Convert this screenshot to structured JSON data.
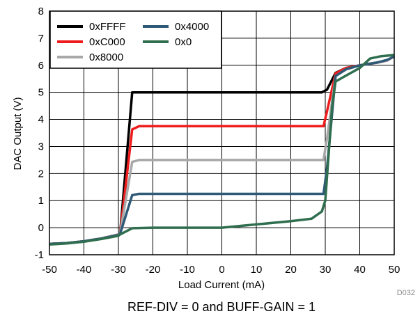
{
  "chart_data": {
    "type": "line",
    "title": "",
    "xlabel": "Load Current (mA)",
    "ylabel": "DAC Output (V)",
    "xlim": [
      -50,
      50
    ],
    "ylim": [
      -1,
      8
    ],
    "xticks": [
      -50,
      -40,
      -30,
      -20,
      -10,
      0,
      10,
      20,
      30,
      40,
      50
    ],
    "yticks": [
      -1,
      0,
      1,
      2,
      3,
      4,
      5,
      6,
      7,
      8
    ],
    "grid": true,
    "legend_position": "top-left",
    "series": [
      {
        "name": "0xFFFF",
        "color": "#000000",
        "points": [
          [
            -50,
            -0.6
          ],
          [
            -45,
            -0.57
          ],
          [
            -40,
            -0.5
          ],
          [
            -35,
            -0.4
          ],
          [
            -30,
            -0.25
          ],
          [
            -29.5,
            -0.2
          ],
          [
            -26,
            5.0
          ],
          [
            29,
            5.0
          ],
          [
            30.5,
            5.1
          ],
          [
            33,
            5.72
          ],
          [
            36,
            5.9
          ],
          [
            40,
            6.0
          ],
          [
            45,
            6.1
          ],
          [
            48,
            6.18
          ],
          [
            50,
            6.33
          ]
        ]
      },
      {
        "name": "0xC000",
        "color": "#ee1c1c",
        "points": [
          [
            -50,
            -0.6
          ],
          [
            -45,
            -0.57
          ],
          [
            -40,
            -0.5
          ],
          [
            -35,
            -0.4
          ],
          [
            -30,
            -0.25
          ],
          [
            -29.5,
            -0.2
          ],
          [
            -26,
            3.63
          ],
          [
            -24,
            3.75
          ],
          [
            29.5,
            3.75
          ],
          [
            30.5,
            4.3
          ],
          [
            33,
            5.7
          ],
          [
            36,
            5.9
          ],
          [
            40,
            6.0
          ],
          [
            45,
            6.1
          ],
          [
            48,
            6.18
          ],
          [
            50,
            6.33
          ]
        ]
      },
      {
        "name": "0x8000",
        "color": "#a8a8a8",
        "points": [
          [
            -50,
            -0.6
          ],
          [
            -45,
            -0.57
          ],
          [
            -40,
            -0.5
          ],
          [
            -35,
            -0.4
          ],
          [
            -30,
            -0.25
          ],
          [
            -29.5,
            -0.2
          ],
          [
            -26,
            2.43
          ],
          [
            -24,
            2.5
          ],
          [
            29.5,
            2.5
          ],
          [
            30.5,
            3.3
          ],
          [
            33,
            5.6
          ],
          [
            36,
            5.85
          ],
          [
            40,
            6.0
          ],
          [
            45,
            6.1
          ],
          [
            48,
            6.18
          ],
          [
            50,
            6.33
          ]
        ]
      },
      {
        "name": "0x4000",
        "color": "#2e5a78",
        "points": [
          [
            -50,
            -0.6
          ],
          [
            -45,
            -0.57
          ],
          [
            -40,
            -0.5
          ],
          [
            -35,
            -0.4
          ],
          [
            -30,
            -0.27
          ],
          [
            -29.5,
            -0.22
          ],
          [
            -26,
            1.2
          ],
          [
            -24,
            1.25
          ],
          [
            29.5,
            1.25
          ],
          [
            30.5,
            2.2
          ],
          [
            33,
            5.6
          ],
          [
            36,
            5.85
          ],
          [
            40,
            6.0
          ],
          [
            45,
            6.1
          ],
          [
            48,
            6.2
          ],
          [
            50,
            6.33
          ]
        ]
      },
      {
        "name": "0x0",
        "color": "#2f6e4e",
        "points": [
          [
            -50,
            -0.62
          ],
          [
            -45,
            -0.58
          ],
          [
            -40,
            -0.52
          ],
          [
            -35,
            -0.42
          ],
          [
            -30,
            -0.3
          ],
          [
            -29.5,
            -0.25
          ],
          [
            -26,
            -0.02
          ],
          [
            -20,
            0.0
          ],
          [
            0,
            0.0
          ],
          [
            10,
            0.12
          ],
          [
            20,
            0.24
          ],
          [
            26,
            0.33
          ],
          [
            29,
            0.6
          ],
          [
            30,
            1.0
          ],
          [
            32,
            4.5
          ],
          [
            33,
            5.4
          ],
          [
            36,
            5.62
          ],
          [
            40,
            5.9
          ],
          [
            43,
            6.25
          ],
          [
            46,
            6.33
          ],
          [
            50,
            6.38
          ]
        ]
      }
    ]
  },
  "figure_id": "D032",
  "caption": "REF-DIV = 0 and BUFF-GAIN = 1"
}
